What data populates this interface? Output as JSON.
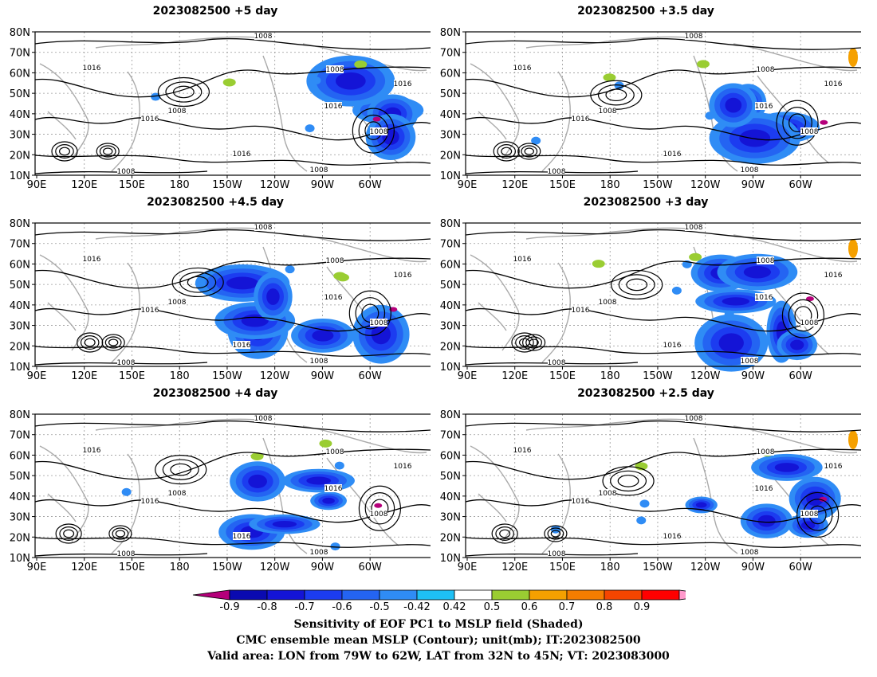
{
  "panels": [
    {
      "title": "2023082500  +5 day"
    },
    {
      "title": "2023082500  +3.5 day"
    },
    {
      "title": "2023082500  +4.5 day"
    },
    {
      "title": "2023082500  +3 day"
    },
    {
      "title": "2023082500  +4 day"
    },
    {
      "title": "2023082500  +2.5 day"
    }
  ],
  "map": {
    "lat_ticks": [
      "80N",
      "70N",
      "60N",
      "50N",
      "40N",
      "30N",
      "20N",
      "10N"
    ],
    "lon_ticks": [
      "90E",
      "120E",
      "150E",
      "180",
      "150W",
      "120W",
      "90W",
      "60W"
    ],
    "contour_labels": [
      "1000",
      "1008",
      "1016"
    ]
  },
  "colorbar": {
    "labels": [
      "-0.9",
      "-0.8",
      "-0.7",
      "-0.6",
      "-0.5",
      "-0.42",
      "0.42",
      "0.5",
      "0.6",
      "0.7",
      "0.8",
      "0.9"
    ],
    "colors": [
      "#b5007a",
      "#0a0ab0",
      "#1414d6",
      "#1c3cf0",
      "#2464f2",
      "#2f8cf5",
      "#1ec0f5",
      "#ffffff",
      "#9acd32",
      "#f5a000",
      "#f57d00",
      "#f54500",
      "#ff0000",
      "#ff99cc"
    ]
  },
  "caption": {
    "line1": "Sensitivity of EOF PC1 to MSLP field (Shaded)",
    "line2": "CMC ensemble mean MSLP (Contour); unit(mb); IT:2023082500",
    "line3": "Valid area: LON from 79W to 62W, LAT from 32N to 45N; VT: 2023083000"
  }
}
